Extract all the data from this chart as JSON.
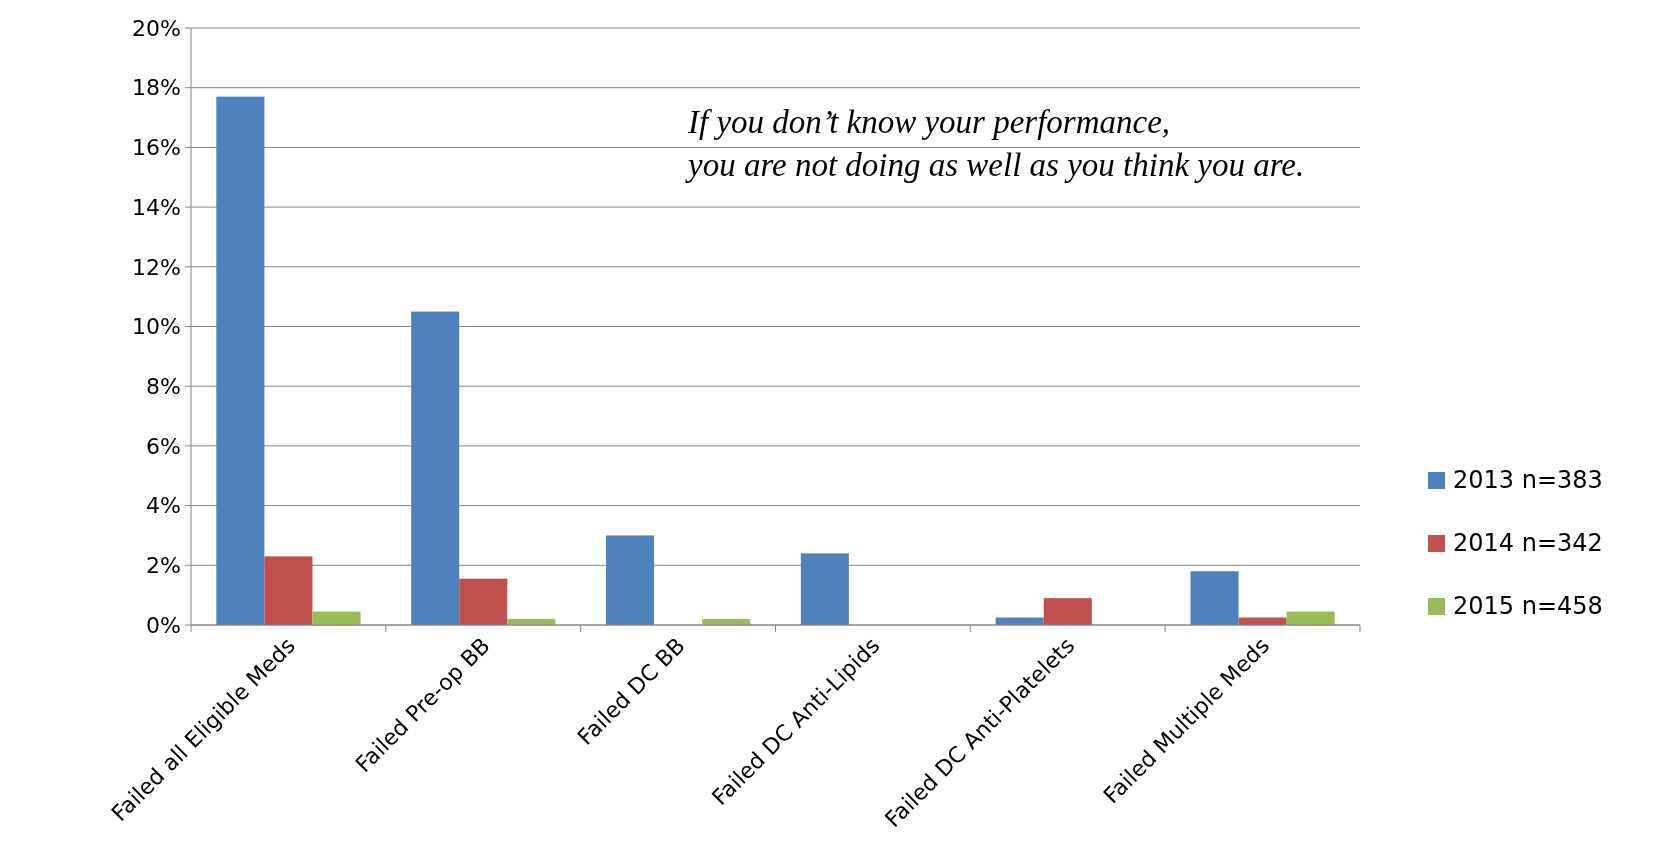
{
  "chart_data": {
    "type": "bar",
    "categories": [
      "Failed all Eligible Meds",
      "Failed Pre-op BB",
      "Failed DC BB",
      "Failed DC Anti-Lipids",
      "Failed DC Anti-Platelets",
      "Failed Multiple Meds"
    ],
    "series": [
      {
        "name": "2013 n=383",
        "color": "#4f81bd",
        "values": [
          17.7,
          10.5,
          3.0,
          2.4,
          0.25,
          1.8
        ]
      },
      {
        "name": "2014 n=342",
        "color": "#c0504d",
        "values": [
          2.3,
          1.55,
          null,
          null,
          0.9,
          0.25
        ]
      },
      {
        "name": "2015 n=458",
        "color": "#9bbb59",
        "values": [
          0.45,
          0.2,
          0.2,
          null,
          null,
          0.45
        ]
      }
    ],
    "ylim": [
      0,
      20
    ],
    "yticks": [
      {
        "value": 0,
        "label": "0%"
      },
      {
        "value": 2,
        "label": "2%"
      },
      {
        "value": 4,
        "label": "4%"
      },
      {
        "value": 6,
        "label": "6%"
      },
      {
        "value": 8,
        "label": "8%"
      },
      {
        "value": 10,
        "label": "10%"
      },
      {
        "value": 12,
        "label": "12%"
      },
      {
        "value": 14,
        "label": "14%"
      },
      {
        "value": 16,
        "label": "16%"
      },
      {
        "value": 18,
        "label": "18%"
      },
      {
        "value": 20,
        "label": "20%"
      }
    ],
    "grid": "y",
    "legend": "right",
    "annotations": [
      "If you don’t know your performance,\nyou are not doing as well as you think you are."
    ]
  }
}
